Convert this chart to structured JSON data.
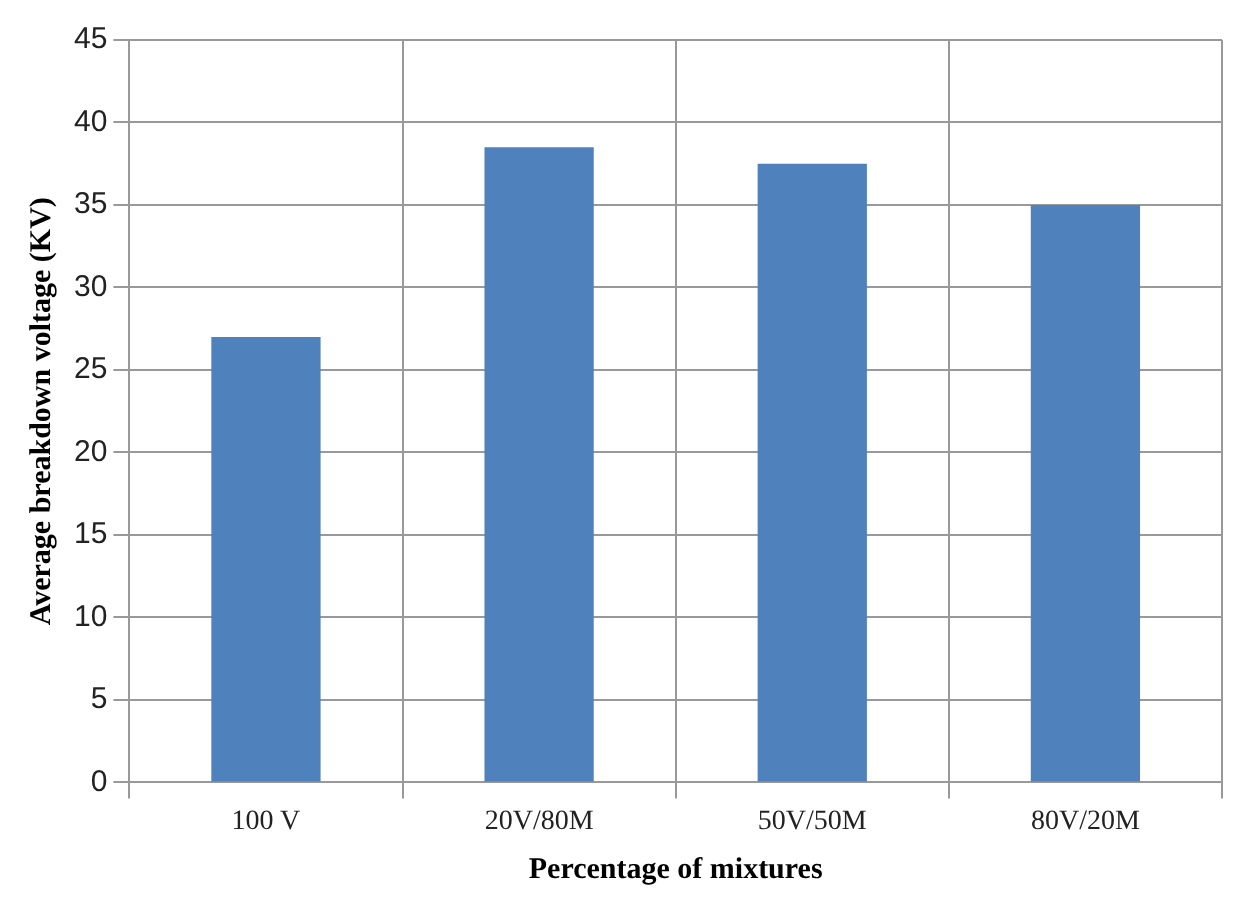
{
  "chart_data": {
    "type": "bar",
    "xlabel": "Percentage of mixtures",
    "ylabel": "Average breakdown voltage (KV)",
    "categories": [
      "100 V",
      "20V/80M",
      "50V/50M",
      "80V/20M"
    ],
    "values": [
      27,
      38.5,
      37.5,
      35
    ],
    "color": "#4f81bd",
    "ylim": [
      0,
      45
    ],
    "yticks": [
      0,
      5,
      10,
      15,
      20,
      25,
      30,
      35,
      40,
      45
    ],
    "grid": true
  }
}
